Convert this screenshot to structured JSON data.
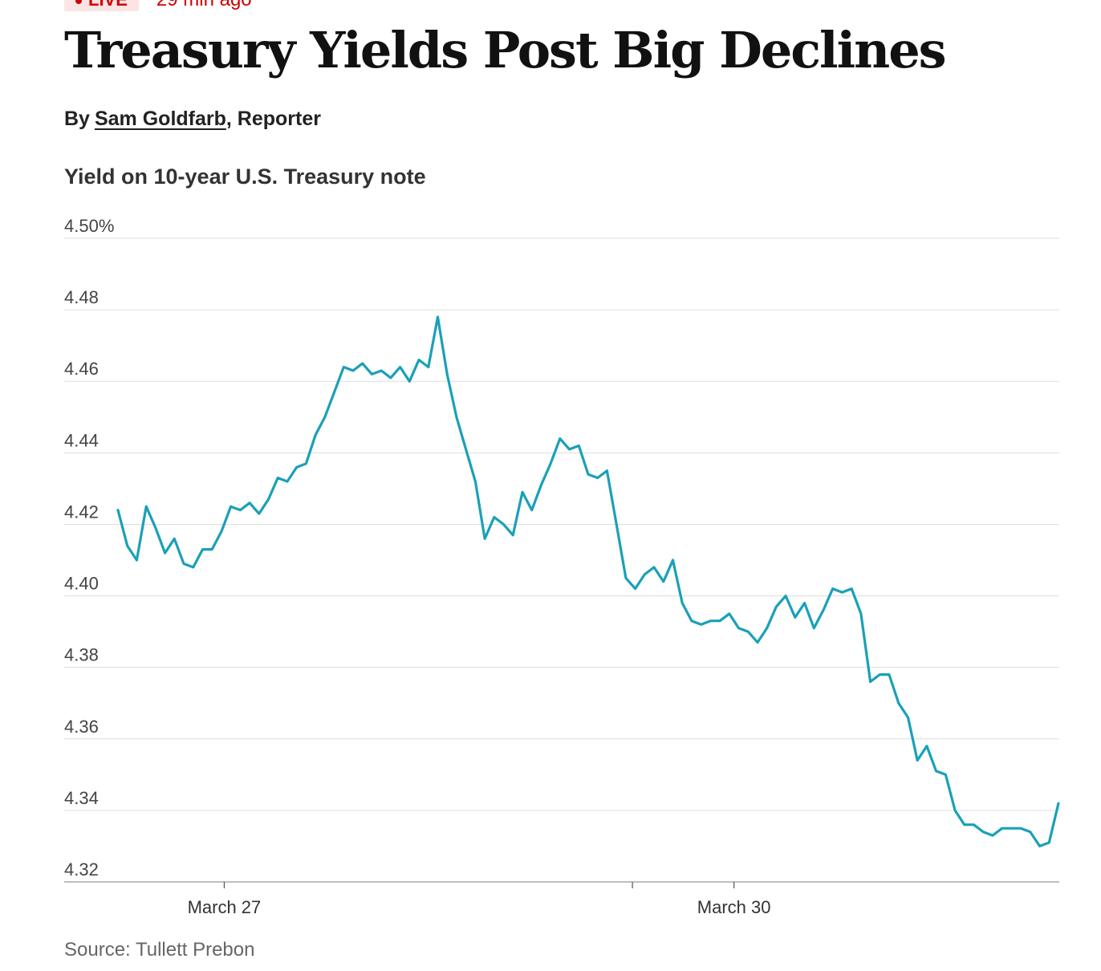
{
  "live": {
    "badge": "LIVE",
    "time_ago": "29 min ago"
  },
  "headline": "Treasury Yields Post Big Declines",
  "byline": {
    "prefix": "By",
    "author": "Sam Goldfarb",
    "role": ", Reporter"
  },
  "source": "Source: Tullett Prebon",
  "colors": {
    "line": "#1aa0b8",
    "live": "#d10000",
    "grid": "#dddddd"
  },
  "chart_data": {
    "type": "line",
    "title": "Yield on 10-year U.S. Treasury note",
    "xlabel": "",
    "ylabel": "",
    "ylim": [
      4.32,
      4.5
    ],
    "yticks": [
      4.5,
      4.48,
      4.46,
      4.44,
      4.42,
      4.4,
      4.38,
      4.36,
      4.34,
      4.32
    ],
    "ytick_labels": [
      "4.50%",
      "4.48",
      "4.46",
      "4.44",
      "4.42",
      "4.40",
      "4.38",
      "4.36",
      "4.34",
      "4.32"
    ],
    "xlim": [
      0,
      100
    ],
    "xticks": [
      {
        "x": 11.3,
        "label": "March 27"
      },
      {
        "x": 54.7,
        "label": ""
      },
      {
        "x": 65.5,
        "label": "March 30"
      }
    ],
    "grid": true,
    "series": [
      {
        "name": "10-year yield",
        "x": [
          0,
          1,
          2,
          3,
          4,
          5,
          6,
          7,
          8,
          9,
          10,
          11,
          12,
          13,
          14,
          15,
          16,
          17,
          18,
          19,
          20,
          21,
          22,
          23,
          24,
          25,
          26,
          27,
          28,
          29,
          30,
          31,
          32,
          33,
          34,
          35,
          36,
          37,
          38,
          39,
          40,
          41,
          42,
          43,
          44,
          45,
          46,
          47,
          48,
          49,
          50,
          51,
          52,
          53,
          54,
          55,
          56,
          57,
          58,
          59,
          60,
          61,
          62,
          63,
          64,
          65,
          66,
          67,
          68,
          69,
          70,
          71,
          72,
          73,
          74,
          75,
          76,
          77,
          78,
          79,
          80,
          81,
          82,
          83,
          84,
          85,
          86,
          87,
          88,
          89,
          90,
          91,
          92,
          93,
          94,
          95,
          96,
          97,
          98,
          99,
          100
        ],
        "values": [
          4.424,
          4.414,
          4.41,
          4.425,
          4.419,
          4.412,
          4.416,
          4.409,
          4.408,
          4.413,
          4.413,
          4.418,
          4.425,
          4.424,
          4.426,
          4.423,
          4.427,
          4.433,
          4.432,
          4.436,
          4.437,
          4.445,
          4.45,
          4.457,
          4.464,
          4.463,
          4.465,
          4.462,
          4.463,
          4.461,
          4.464,
          4.46,
          4.466,
          4.464,
          4.478,
          4.462,
          4.45,
          4.441,
          4.432,
          4.416,
          4.422,
          4.42,
          4.417,
          4.429,
          4.424,
          4.431,
          4.437,
          4.444,
          4.441,
          4.442,
          4.434,
          4.433,
          4.435,
          4.42,
          4.405,
          4.402,
          4.406,
          4.408,
          4.404,
          4.41,
          4.398,
          4.393,
          4.392,
          4.393,
          4.393,
          4.395,
          4.391,
          4.39,
          4.387,
          4.391,
          4.397,
          4.4,
          4.394,
          4.398,
          4.391,
          4.396,
          4.402,
          4.401,
          4.402,
          4.395,
          4.376,
          4.378,
          4.378,
          4.37,
          4.366,
          4.354,
          4.358,
          4.351,
          4.35,
          4.34,
          4.336,
          4.336,
          4.334,
          4.333,
          4.335,
          4.335,
          4.335,
          4.334,
          4.33,
          4.331,
          4.342
        ]
      }
    ]
  }
}
